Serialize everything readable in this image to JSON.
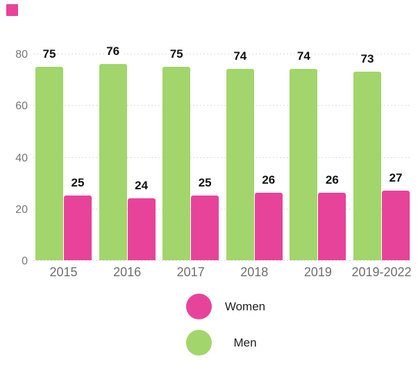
{
  "chart_data": {
    "type": "bar",
    "title": "",
    "xlabel": "",
    "ylabel": "",
    "categories": [
      "2015",
      "2016",
      "2017",
      "2018",
      "2019",
      "2019-2022"
    ],
    "series": [
      {
        "name": "Men",
        "color": "#a2d56b",
        "values": [
          75,
          76,
          75,
          74,
          74,
          73
        ]
      },
      {
        "name": "Women",
        "color": "#e8439a",
        "values": [
          25,
          24,
          25,
          26,
          26,
          27
        ]
      }
    ],
    "bar_order_per_group": [
      "Men",
      "Women"
    ],
    "ylim": [
      0,
      80
    ],
    "yticks": [
      0,
      20,
      40,
      60,
      80
    ],
    "ytick_labels": [
      "0",
      "20",
      "40",
      "60",
      "80"
    ],
    "grid": "dotted-horizontal",
    "value_labels": true,
    "legend_position": "bottom-center"
  },
  "legend": {
    "items": [
      {
        "label": "Women",
        "color": "#e8439a"
      },
      {
        "label": "Men",
        "color": "#a2d56b"
      }
    ]
  },
  "decor": {
    "corner_square_color": "#e8439a"
  },
  "colors": {
    "background": "#ffffff",
    "gridline": "#dcdcdc",
    "y_tick_text": "#757575",
    "x_tick_text": "#6e6e6e",
    "value_label_text": "#111111",
    "legend_text": "#1d1d1d"
  }
}
